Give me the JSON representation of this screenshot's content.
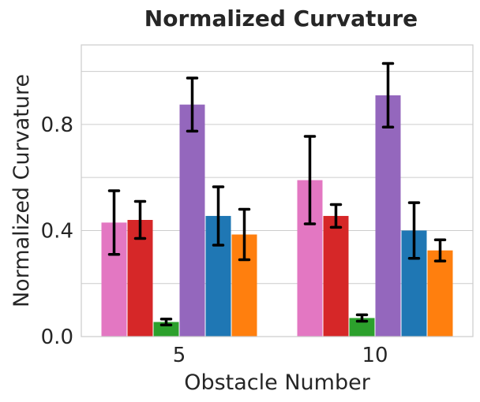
{
  "chart_data": {
    "type": "bar",
    "title": "Normalized Curvature",
    "xlabel": "Obstacle Number",
    "ylabel": "Normalized Curvature",
    "categories": [
      "5",
      "10"
    ],
    "ylim": [
      0,
      1.1
    ],
    "yticks": [
      0.0,
      0.4,
      0.8
    ],
    "ytick_labels": [
      "0.0",
      "0.4",
      "0.8"
    ],
    "grid_yticks": [
      0.2,
      0.4,
      0.6,
      0.8,
      1.0
    ],
    "grid": true,
    "legend": null,
    "series": [
      {
        "color": "#e377c2",
        "values": [
          0.43,
          0.59
        ],
        "err": [
          0.12,
          0.165
        ]
      },
      {
        "color": "#d62728",
        "values": [
          0.44,
          0.455
        ],
        "err": [
          0.07,
          0.043
        ]
      },
      {
        "color": "#2ca02c",
        "values": [
          0.055,
          0.07
        ],
        "err": [
          0.011,
          0.012
        ]
      },
      {
        "color": "#9467bd",
        "values": [
          0.875,
          0.91
        ],
        "err": [
          0.1,
          0.12
        ]
      },
      {
        "color": "#1f77b4",
        "values": [
          0.455,
          0.4
        ],
        "err": [
          0.11,
          0.105
        ]
      },
      {
        "color": "#ff7f0e",
        "values": [
          0.385,
          0.325
        ],
        "err": [
          0.095,
          0.04
        ]
      }
    ]
  }
}
